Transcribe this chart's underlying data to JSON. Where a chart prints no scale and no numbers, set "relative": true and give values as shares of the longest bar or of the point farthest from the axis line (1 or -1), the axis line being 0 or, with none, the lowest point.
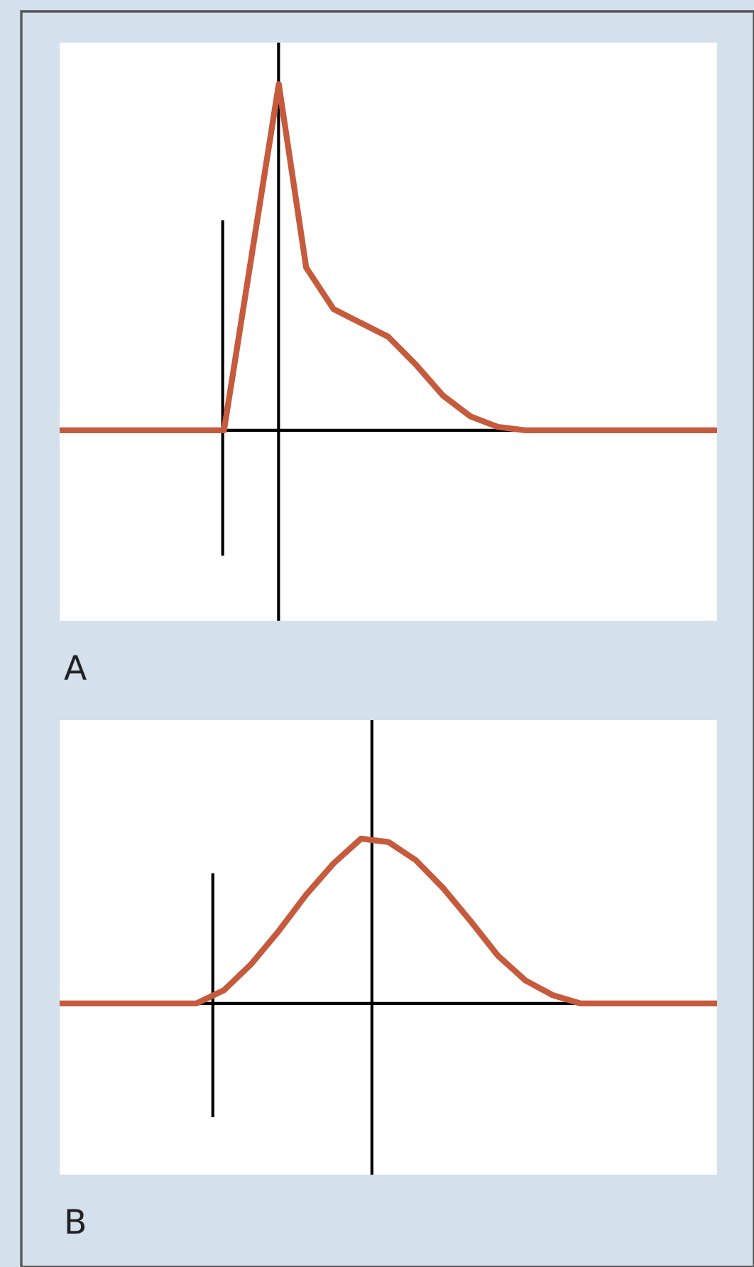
{
  "chart_data": [
    {
      "type": "line",
      "title": "A",
      "relative": true,
      "categories": [
        null,
        null,
        null,
        null,
        null,
        null,
        null,
        null,
        null,
        null,
        null,
        null,
        null,
        null,
        null,
        null,
        null,
        null,
        null,
        null,
        null,
        null,
        null,
        null,
        null
      ],
      "series": [
        {
          "color": "#c65a3c",
          "values": [
            0,
            0,
            0,
            0,
            0,
            0,
            0,
            0.5,
            1,
            0.47,
            0.35,
            0.31,
            0.27,
            0.19,
            0.1,
            0.04,
            0.01,
            0,
            0,
            0,
            0,
            0,
            0,
            0,
            0
          ]
        }
      ]
    },
    {
      "type": "line",
      "title": "B",
      "relative": true,
      "categories": [
        null,
        null,
        null,
        null,
        null,
        null,
        null,
        null,
        null,
        null,
        null,
        null,
        null,
        null,
        null,
        null,
        null,
        null,
        null,
        null,
        null,
        null,
        null,
        null,
        null
      ],
      "series": [
        {
          "color": "#c65a3c",
          "values": [
            0,
            0,
            0,
            0,
            0,
            0,
            0.08,
            0.24,
            0.44,
            0.66,
            0.85,
            1,
            0.98,
            0.87,
            0.7,
            0.5,
            0.29,
            0.14,
            0.05,
            0,
            0,
            0,
            0,
            0,
            0
          ]
        }
      ]
    }
  ]
}
